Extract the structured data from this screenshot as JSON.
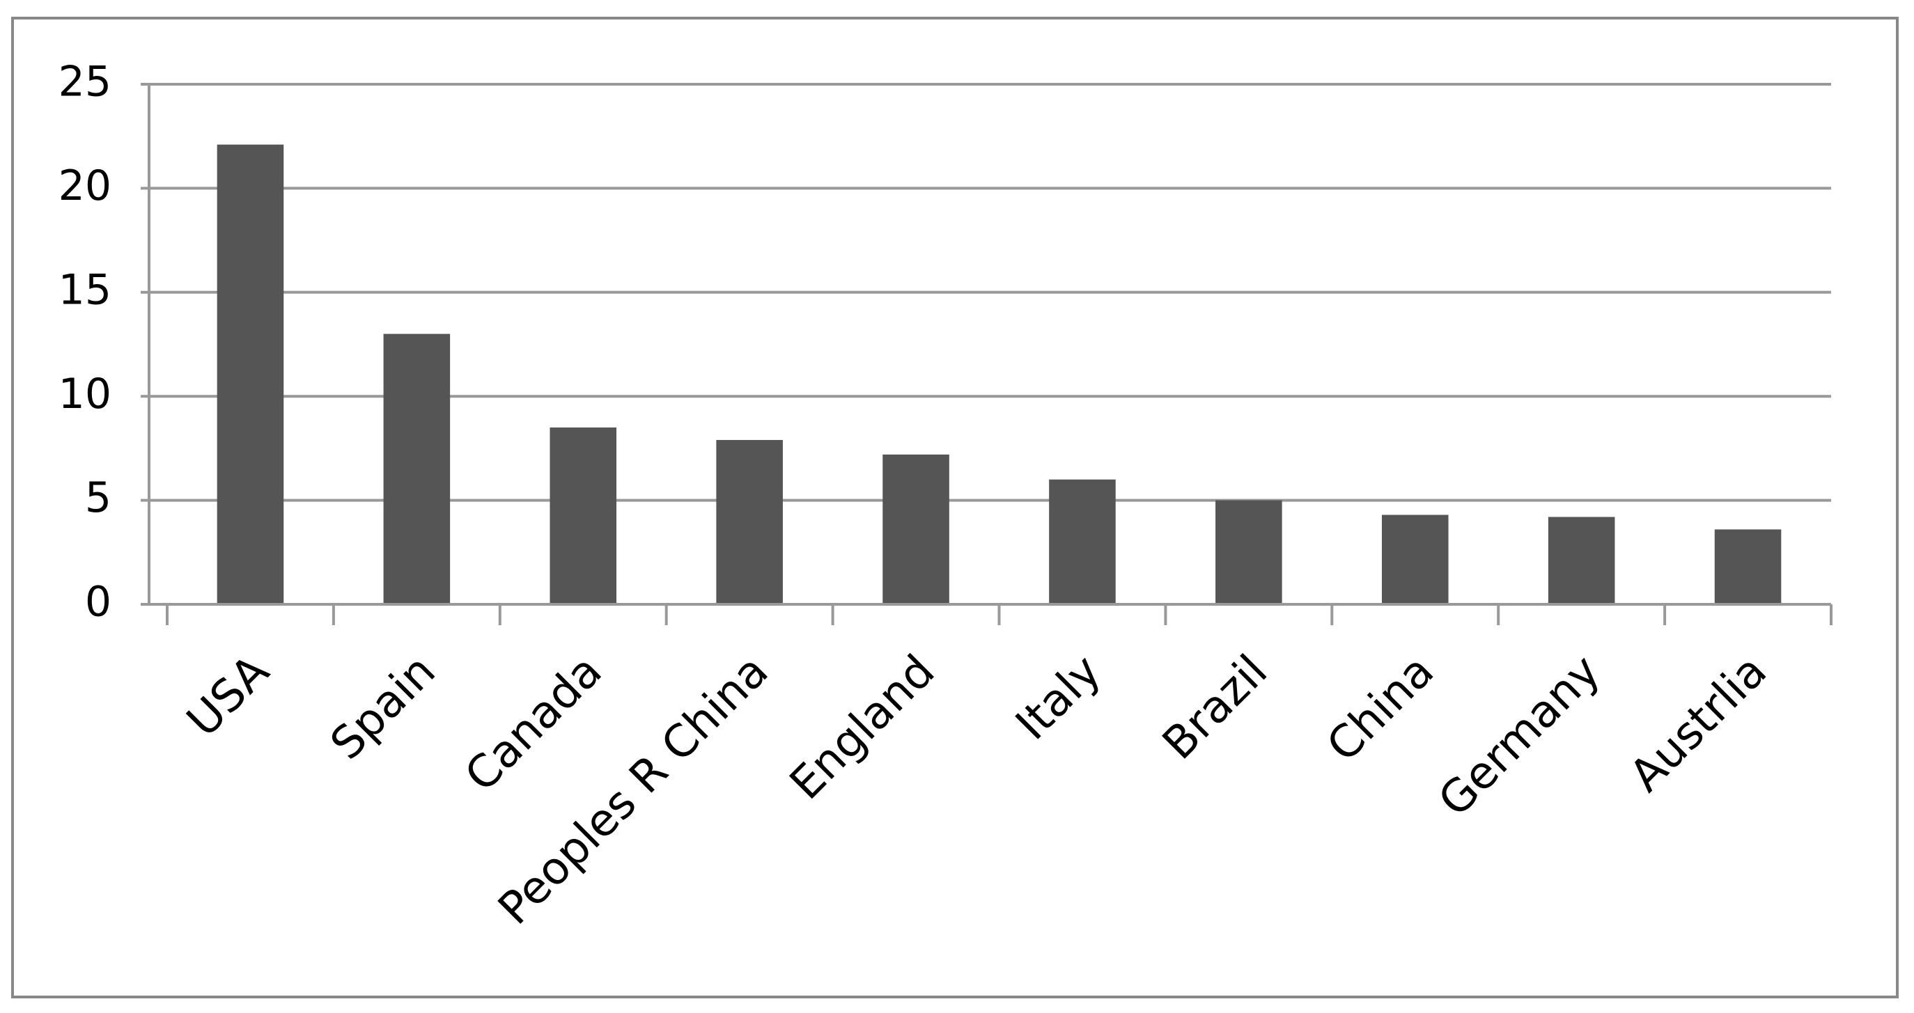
{
  "chart_data": {
    "type": "bar",
    "categories": [
      "USA",
      "Spain",
      "Canada",
      "Peoples R China",
      "England",
      "Italy",
      "Brazil",
      "China",
      "Germany",
      "Austrlia"
    ],
    "values": [
      22.1,
      13.0,
      8.5,
      7.9,
      7.2,
      6.0,
      5.0,
      4.3,
      4.2,
      3.6
    ],
    "color": "#555555",
    "ylim": [
      0,
      25
    ],
    "yticks": [
      0,
      5,
      10,
      15,
      20,
      25
    ],
    "grid": true
  }
}
